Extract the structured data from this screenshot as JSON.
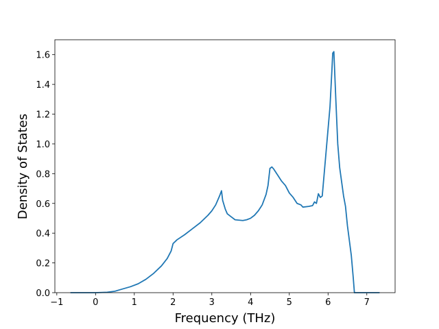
{
  "chart_data": {
    "type": "line",
    "xlabel": "Frequency (THz)",
    "ylabel": "Density of States",
    "x": [
      -0.65,
      0,
      0.3,
      0.5,
      0.7,
      0.9,
      1.1,
      1.3,
      1.5,
      1.7,
      1.85,
      1.95,
      2.0,
      2.1,
      2.3,
      2.5,
      2.7,
      2.9,
      3.0,
      3.1,
      3.2,
      3.25,
      3.28,
      3.35,
      3.4,
      3.5,
      3.6,
      3.8,
      3.9,
      4.0,
      4.1,
      4.2,
      4.3,
      4.4,
      4.45,
      4.5,
      4.55,
      4.6,
      4.7,
      4.8,
      4.9,
      5.0,
      5.1,
      5.2,
      5.3,
      5.35,
      5.5,
      5.6,
      5.65,
      5.7,
      5.75,
      5.8,
      5.85,
      5.9,
      5.95,
      6.0,
      6.05,
      6.1,
      6.12,
      6.15,
      6.2,
      6.25,
      6.3,
      6.4,
      6.45,
      6.5,
      6.6,
      6.65,
      6.68,
      7.0,
      7.33
    ],
    "series": [
      {
        "color": "#1f77b4",
        "values": [
          0,
          0,
          0.003,
          0.01,
          0.025,
          0.04,
          0.06,
          0.09,
          0.13,
          0.18,
          0.23,
          0.28,
          0.33,
          0.355,
          0.39,
          0.43,
          0.47,
          0.52,
          0.55,
          0.59,
          0.65,
          0.685,
          0.62,
          0.56,
          0.53,
          0.51,
          0.49,
          0.485,
          0.49,
          0.5,
          0.52,
          0.55,
          0.59,
          0.66,
          0.72,
          0.835,
          0.845,
          0.83,
          0.79,
          0.75,
          0.72,
          0.67,
          0.64,
          0.6,
          0.59,
          0.575,
          0.58,
          0.585,
          0.61,
          0.6,
          0.665,
          0.64,
          0.65,
          0.8,
          0.95,
          1.1,
          1.25,
          1.5,
          1.61,
          1.62,
          1.3,
          1.0,
          0.84,
          0.65,
          0.58,
          0.45,
          0.25,
          0.1,
          0,
          0,
          0
        ]
      }
    ],
    "xlim": [
      -1.05,
      7.73
    ],
    "ylim": [
      0,
      1.7
    ],
    "xticks": [
      {
        "value": -1,
        "label": "−1"
      },
      0,
      1,
      2,
      3,
      4,
      5,
      6,
      7
    ],
    "yticks": [
      {
        "value": 0,
        "label": "0.0"
      },
      0.2,
      0.4,
      0.6,
      0.8,
      {
        "value": 1,
        "label": "1.0"
      },
      1.2,
      1.4,
      1.6
    ]
  }
}
